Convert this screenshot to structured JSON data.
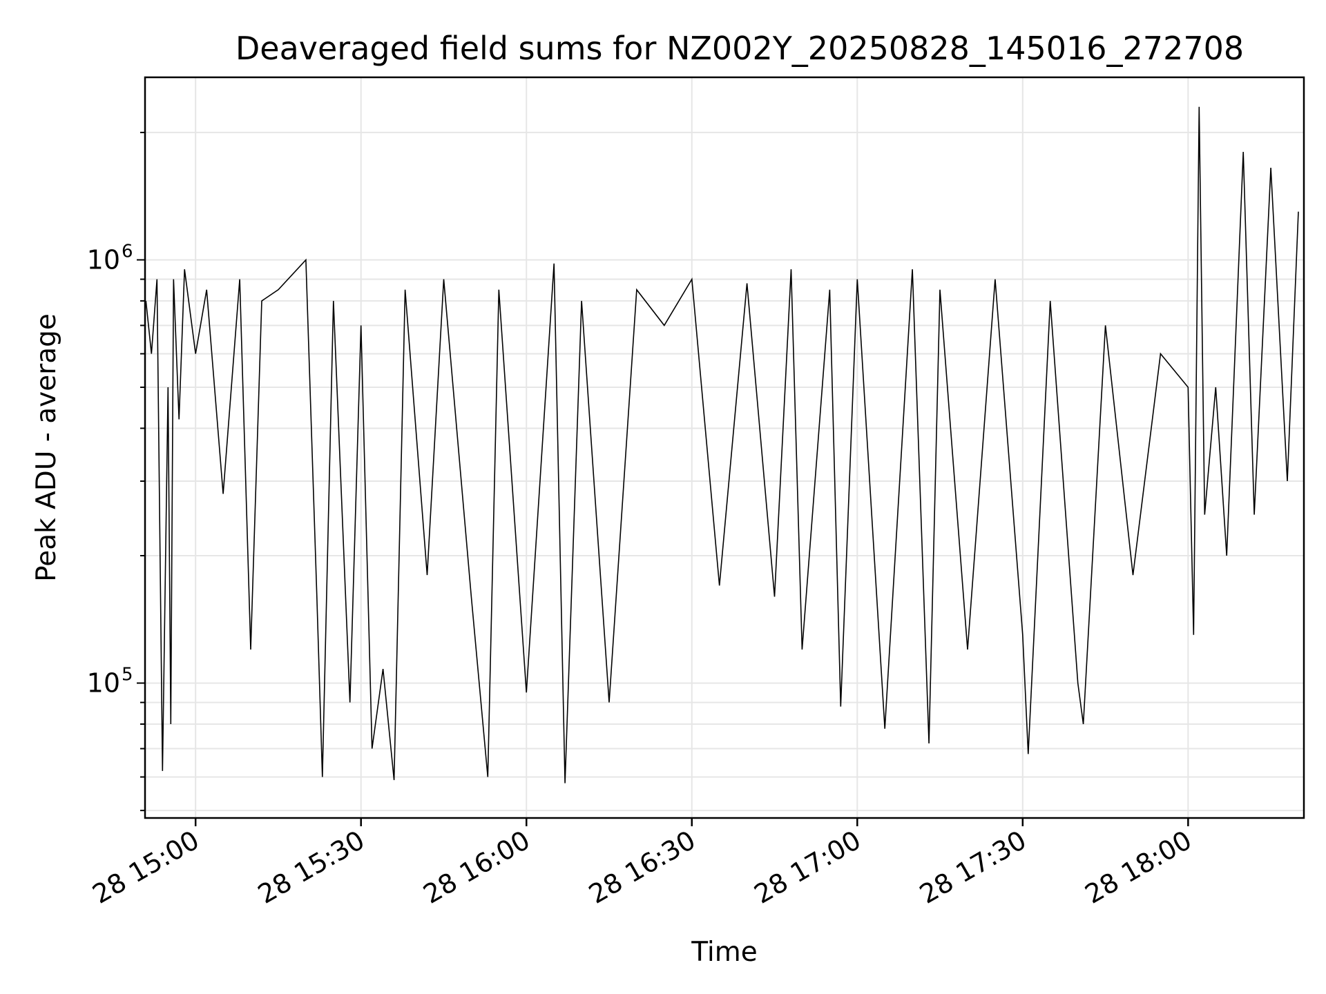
{
  "chart_data": {
    "type": "line",
    "title": "Deaveraged field sums for NZ002Y_20250828_145016_272708",
    "xlabel": "Time",
    "ylabel": "Peak ADU - average",
    "yscale": "log",
    "ylim": [
      48000,
      2700000
    ],
    "xlim": [
      "2025-08-28 14:50:50",
      "2025-08-28 18:21:00"
    ],
    "x_ticks": [
      {
        "t": "2025-08-28 15:00",
        "label": "28 15:00"
      },
      {
        "t": "2025-08-28 15:30",
        "label": "28 15:30"
      },
      {
        "t": "2025-08-28 16:00",
        "label": "28 16:00"
      },
      {
        "t": "2025-08-28 16:30",
        "label": "28 16:30"
      },
      {
        "t": "2025-08-28 17:00",
        "label": "28 17:00"
      },
      {
        "t": "2025-08-28 17:30",
        "label": "28 17:30"
      },
      {
        "t": "2025-08-28 18:00",
        "label": "28 18:00"
      }
    ],
    "y_ticks": [
      {
        "value": 100000,
        "base": "10",
        "exp": "5"
      },
      {
        "value": 1000000,
        "base": "10",
        "exp": "6"
      }
    ],
    "grid": true,
    "line_color": "#000000",
    "grid_color": "#e6e6e6",
    "series": [
      {
        "points": [
          [
            "2025-08-28 14:51",
            800000
          ],
          [
            "2025-08-28 14:52",
            600000
          ],
          [
            "2025-08-28 14:53",
            900000
          ],
          [
            "2025-08-28 14:54",
            62000
          ],
          [
            "2025-08-28 14:55",
            500000
          ],
          [
            "2025-08-28 14:55:30",
            80000
          ],
          [
            "2025-08-28 14:56",
            900000
          ],
          [
            "2025-08-28 14:57",
            420000
          ],
          [
            "2025-08-28 14:58",
            950000
          ],
          [
            "2025-08-28 15:00",
            600000
          ],
          [
            "2025-08-28 15:02",
            850000
          ],
          [
            "2025-08-28 15:05",
            280000
          ],
          [
            "2025-08-28 15:08",
            900000
          ],
          [
            "2025-08-28 15:10",
            120000
          ],
          [
            "2025-08-28 15:12",
            800000
          ],
          [
            "2025-08-28 15:15",
            850000
          ],
          [
            "2025-08-28 15:20",
            1000000
          ],
          [
            "2025-08-28 15:22",
            160000
          ],
          [
            "2025-08-28 15:23",
            60000
          ],
          [
            "2025-08-28 15:25",
            800000
          ],
          [
            "2025-08-28 15:28",
            90000
          ],
          [
            "2025-08-28 15:30",
            700000
          ],
          [
            "2025-08-28 15:32",
            70000
          ],
          [
            "2025-08-28 15:34",
            108000
          ],
          [
            "2025-08-28 15:36",
            59000
          ],
          [
            "2025-08-28 15:38",
            850000
          ],
          [
            "2025-08-28 15:42",
            180000
          ],
          [
            "2025-08-28 15:45",
            900000
          ],
          [
            "2025-08-28 15:50",
            160000
          ],
          [
            "2025-08-28 15:53",
            60000
          ],
          [
            "2025-08-28 15:55",
            850000
          ],
          [
            "2025-08-28 16:00",
            95000
          ],
          [
            "2025-08-28 16:05",
            980000
          ],
          [
            "2025-08-28 16:07",
            58000
          ],
          [
            "2025-08-28 16:10",
            800000
          ],
          [
            "2025-08-28 16:15",
            90000
          ],
          [
            "2025-08-28 16:20",
            850000
          ],
          [
            "2025-08-28 16:25",
            700000
          ],
          [
            "2025-08-28 16:30",
            900000
          ],
          [
            "2025-08-28 16:35",
            170000
          ],
          [
            "2025-08-28 16:40",
            880000
          ],
          [
            "2025-08-28 16:45",
            160000
          ],
          [
            "2025-08-28 16:48",
            950000
          ],
          [
            "2025-08-28 16:50",
            120000
          ],
          [
            "2025-08-28 16:55",
            850000
          ],
          [
            "2025-08-28 16:57",
            88000
          ],
          [
            "2025-08-28 17:00",
            900000
          ],
          [
            "2025-08-28 17:05",
            78000
          ],
          [
            "2025-08-28 17:10",
            950000
          ],
          [
            "2025-08-28 17:13",
            72000
          ],
          [
            "2025-08-28 17:15",
            850000
          ],
          [
            "2025-08-28 17:20",
            120000
          ],
          [
            "2025-08-28 17:25",
            900000
          ],
          [
            "2025-08-28 17:30",
            130000
          ],
          [
            "2025-08-28 17:31",
            68000
          ],
          [
            "2025-08-28 17:35",
            800000
          ],
          [
            "2025-08-28 17:40",
            100000
          ],
          [
            "2025-08-28 17:41",
            80000
          ],
          [
            "2025-08-28 17:45",
            700000
          ],
          [
            "2025-08-28 17:50",
            180000
          ],
          [
            "2025-08-28 17:55",
            600000
          ],
          [
            "2025-08-28 18:00",
            500000
          ],
          [
            "2025-08-28 18:01",
            130000
          ],
          [
            "2025-08-28 18:02",
            2300000
          ],
          [
            "2025-08-28 18:03",
            250000
          ],
          [
            "2025-08-28 18:05",
            500000
          ],
          [
            "2025-08-28 18:07",
            200000
          ],
          [
            "2025-08-28 18:10",
            1800000
          ],
          [
            "2025-08-28 18:12",
            250000
          ],
          [
            "2025-08-28 18:15",
            1650000
          ],
          [
            "2025-08-28 18:18",
            300000
          ],
          [
            "2025-08-28 18:20",
            1300000
          ]
        ]
      }
    ]
  }
}
